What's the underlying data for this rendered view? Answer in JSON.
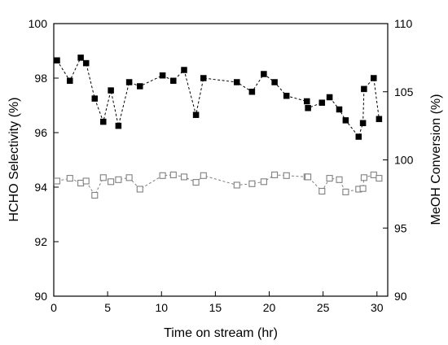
{
  "chart_data": {
    "type": "scatter",
    "xlabel": "Time on stream (hr)",
    "ylabel": "HCHO Selectivity (%)",
    "y2label": "MeOH Conversion (%)",
    "xlim": [
      0,
      31
    ],
    "ylim": [
      90,
      100
    ],
    "y2lim": [
      90,
      110
    ],
    "xticks": [
      0,
      5,
      10,
      15,
      20,
      25,
      30
    ],
    "yticks": [
      90,
      92,
      94,
      96,
      98,
      100
    ],
    "y2ticks": [
      90,
      95,
      100,
      105,
      110
    ],
    "grid": false,
    "series": [
      {
        "axis": "left",
        "marker": "filled-square",
        "color": "#000000",
        "line": "dashed",
        "x": [
          0.3,
          1.5,
          2.5,
          3.0,
          3.8,
          4.6,
          5.3,
          6.0,
          7.0,
          8.0,
          10.1,
          11.1,
          12.1,
          13.2,
          13.9,
          17.0,
          18.4,
          19.5,
          20.5,
          21.6,
          23.5,
          23.6,
          24.9,
          25.6,
          26.5,
          27.1,
          28.3,
          28.7,
          28.8,
          29.7,
          30.2
        ],
        "y": [
          98.65,
          97.9,
          98.75,
          98.55,
          97.25,
          96.4,
          97.55,
          96.25,
          97.85,
          97.7,
          98.1,
          97.9,
          98.3,
          96.65,
          98.0,
          97.85,
          97.5,
          98.15,
          97.85,
          97.35,
          97.15,
          96.9,
          97.1,
          97.3,
          96.85,
          96.45,
          95.85,
          96.35,
          97.6,
          98.0,
          96.5
        ]
      },
      {
        "axis": "right",
        "marker": "open-square",
        "color": "#808080",
        "line": "dashed",
        "x": [
          0.3,
          1.5,
          2.5,
          3.0,
          3.8,
          4.6,
          5.3,
          6.0,
          7.0,
          8.0,
          10.1,
          11.1,
          12.1,
          13.2,
          13.9,
          17.0,
          18.4,
          19.5,
          20.5,
          21.6,
          23.5,
          23.6,
          24.9,
          25.6,
          26.5,
          27.1,
          28.3,
          28.7,
          28.8,
          29.7,
          30.2
        ],
        "y": [
          98.45,
          98.65,
          98.3,
          98.45,
          97.4,
          98.7,
          98.4,
          98.55,
          98.7,
          97.85,
          98.85,
          98.9,
          98.75,
          98.35,
          98.85,
          98.15,
          98.25,
          98.4,
          98.9,
          98.85,
          98.75,
          98.75,
          97.7,
          98.65,
          98.55,
          97.65,
          97.85,
          97.9,
          98.7,
          98.9,
          98.65
        ]
      }
    ]
  }
}
